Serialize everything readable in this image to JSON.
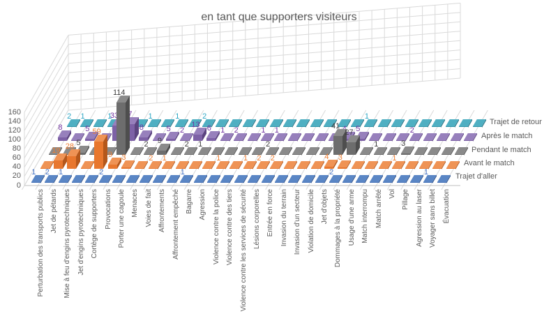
{
  "title": "en tant que supporters visiteurs",
  "chart_data": {
    "type": "bar",
    "subtype": "3d-column",
    "title": "en tant que supporters visiteurs",
    "value_axis": {
      "min": 0,
      "max": 160,
      "step": 20,
      "ticks": [
        "0",
        "20",
        "40",
        "60",
        "80",
        "100",
        "120",
        "140",
        "160"
      ]
    },
    "grid": true,
    "legend_position": "right",
    "categories": [
      "Perturbation des transports publics",
      "Jet de pétards",
      "Mise à feu d'engins pyrotechniques",
      "Jet d'engins pyrotechniques",
      "Cortège de supporters",
      "Provocations",
      "Porter une cagoule",
      "Menaces",
      "Voies de fait",
      "Affrontements",
      "Affrontement empêché",
      "Bagarre",
      "Agression",
      "Violence contre la police",
      "Violence contre des tiers",
      "Violence contre les services de sécurité",
      "Lésions corporelles",
      "Entrée en force",
      "Invasion du terrain",
      "Invasion d'un secteur",
      "Violation de domicile",
      "Jet d'objets",
      "Dommages à la propriété",
      "Usage d'une arme",
      "Match interrompu",
      "Match arrêté",
      "Vol",
      "Pillage",
      "Agression au laser",
      "Voyager sans billet",
      "Évacuation"
    ],
    "series": [
      {
        "name": "Trajet d'aller",
        "color": "#3F6CB4",
        "color_top": "#5A86C5",
        "color_side": "#2C4E87",
        "label_color": "#4472C4",
        "values": [
          1,
          2,
          1,
          null,
          null,
          2,
          null,
          null,
          null,
          null,
          null,
          1,
          null,
          null,
          null,
          null,
          null,
          null,
          null,
          null,
          null,
          null,
          2,
          null,
          null,
          null,
          null,
          null,
          null,
          1,
          null
        ]
      },
      {
        "name": "Avant le match",
        "color": "#E8772E",
        "color_top": "#EF9355",
        "color_side": "#B4571B",
        "label_color": "#ED7D31",
        "values": [
          null,
          19,
          28,
          null,
          59,
          9,
          3,
          null,
          2,
          1,
          null,
          null,
          null,
          1,
          null,
          1,
          2,
          2,
          null,
          null,
          null,
          4,
          3,
          null,
          null,
          null,
          1,
          null,
          null,
          null,
          null
        ]
      },
      {
        "name": "Pendant le match",
        "color": "#6D6D6D",
        "color_top": "#8A8A8A",
        "color_side": "#4E4E4E",
        "label_color": "#3B3B3B",
        "values": [
          null,
          null,
          5,
          null,
          null,
          114,
          null,
          2,
          9,
          null,
          2,
          1,
          null,
          null,
          null,
          null,
          2,
          null,
          null,
          null,
          null,
          41,
          27,
          null,
          1,
          null,
          3,
          null,
          null,
          null,
          null
        ]
      },
      {
        "name": "Après le match",
        "color": "#7D61A6",
        "color_top": "#9780BC",
        "color_side": "#5C4480",
        "label_color": "#7030A0",
        "values": [
          8,
          null,
          5,
          null,
          33,
          37,
          8,
          null,
          5,
          2,
          13,
          6,
          1,
          2,
          null,
          1,
          1,
          null,
          null,
          null,
          null,
          4,
          5,
          null,
          null,
          null,
          2,
          null,
          null,
          null,
          null
        ]
      },
      {
        "name": "Trajet de retour",
        "color": "#2E94A9",
        "color_top": "#4FAFC2",
        "color_side": "#20697A",
        "label_color": "#2BA6C4",
        "values": [
          2,
          1,
          null,
          1,
          null,
          null,
          1,
          null,
          1,
          null,
          2,
          null,
          null,
          null,
          null,
          null,
          null,
          null,
          null,
          null,
          null,
          null,
          1,
          null,
          null,
          null,
          null,
          null,
          null,
          null,
          null
        ]
      }
    ],
    "colors": {
      "gridline": "#D9D9D9",
      "axis_line": "#BFBFBF",
      "text": "#595959"
    }
  }
}
